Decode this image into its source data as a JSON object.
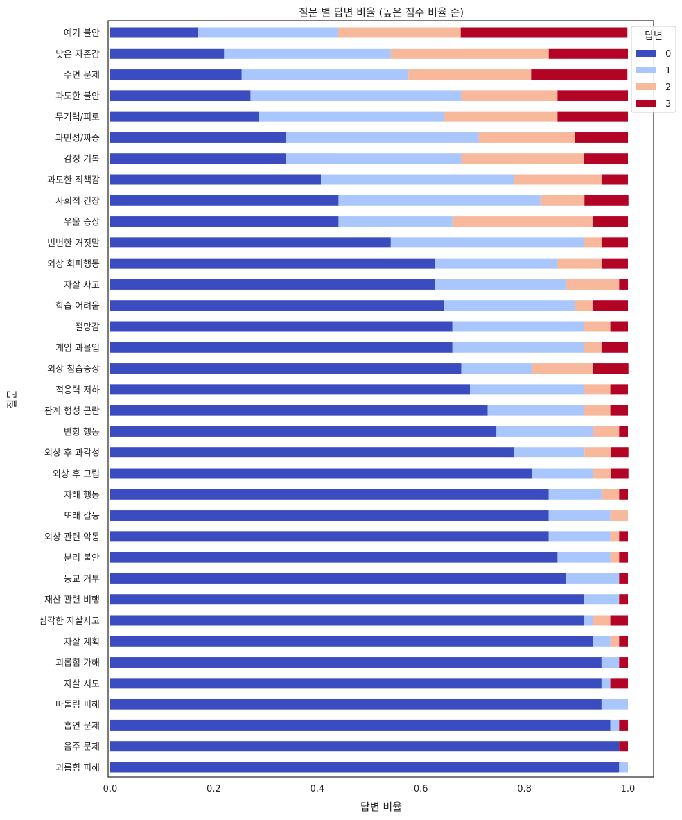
{
  "chart_data": {
    "type": "bar",
    "orientation": "horizontal",
    "stacked": true,
    "title": "질문 별 답변 비율 (높은 점수 비율 순)",
    "xlabel": "답변 비율",
    "ylabel": "질문",
    "xlim": [
      0,
      1.05
    ],
    "xticks": [
      "0.0",
      "0.2",
      "0.4",
      "0.6",
      "0.8",
      "1.0"
    ],
    "grid": false,
    "legend": {
      "title": "답변",
      "position": "top-right"
    },
    "categories": [
      "예기 불안",
      "낮은 자존감",
      "수면 문제",
      "과도한 불안",
      "무기력/피로",
      "과민성/짜증",
      "감정 기복",
      "과도한 죄책감",
      "사회적 긴장",
      "우울 증상",
      "빈번한 거짓말",
      "외상 회피행동",
      "자살 사고",
      "학습 어려움",
      "절망감",
      "게임 과몰입",
      "외상 침습증상",
      "적응력 저하",
      "관계 형성 곤란",
      "반항 행동",
      "외상 후 과각성",
      "외상 후 고립",
      "자해 행동",
      "또래 갈등",
      "외상 관련 악몽",
      "분리 불안",
      "등교 거부",
      "재산 관련 비행",
      "심각한 자살사고",
      "자살 계획",
      "괴롭힘 가해",
      "자살 시도",
      "따돌림 피해",
      "흡연 문제",
      "음주 문제",
      "괴롭힘 피해"
    ],
    "series": [
      {
        "name": "0",
        "color": "#3b4cc0",
        "values": [
          0.169,
          0.22,
          0.254,
          0.271,
          0.288,
          0.339,
          0.339,
          0.407,
          0.441,
          0.441,
          0.542,
          0.627,
          0.627,
          0.644,
          0.661,
          0.661,
          0.678,
          0.695,
          0.729,
          0.746,
          0.78,
          0.814,
          0.847,
          0.847,
          0.847,
          0.864,
          0.881,
          0.915,
          0.915,
          0.932,
          0.949,
          0.949,
          0.949,
          0.966,
          0.983,
          0.983
        ]
      },
      {
        "name": "1",
        "color": "#aac7fd",
        "values": [
          0.271,
          0.322,
          0.322,
          0.407,
          0.356,
          0.373,
          0.339,
          0.373,
          0.39,
          0.22,
          0.373,
          0.237,
          0.254,
          0.254,
          0.254,
          0.254,
          0.136,
          0.22,
          0.186,
          0.186,
          0.136,
          0.119,
          0.102,
          0.119,
          0.119,
          0.102,
          0.102,
          0.068,
          0.017,
          0.034,
          0.034,
          0.017,
          0.051,
          0.017,
          0.0,
          0.017
        ]
      },
      {
        "name": "2",
        "color": "#f7b89c",
        "values": [
          0.237,
          0.305,
          0.237,
          0.186,
          0.22,
          0.186,
          0.237,
          0.169,
          0.085,
          0.271,
          0.034,
          0.085,
          0.102,
          0.034,
          0.051,
          0.034,
          0.119,
          0.051,
          0.051,
          0.051,
          0.051,
          0.034,
          0.034,
          0.034,
          0.017,
          0.017,
          0.0,
          0.0,
          0.034,
          0.017,
          0.0,
          0.0,
          0.0,
          0.0,
          0.0,
          0.0
        ]
      },
      {
        "name": "3",
        "color": "#b40426",
        "values": [
          0.322,
          0.153,
          0.186,
          0.136,
          0.136,
          0.102,
          0.085,
          0.051,
          0.085,
          0.068,
          0.051,
          0.051,
          0.017,
          0.068,
          0.034,
          0.051,
          0.068,
          0.034,
          0.034,
          0.017,
          0.034,
          0.034,
          0.017,
          0.0,
          0.017,
          0.017,
          0.017,
          0.017,
          0.034,
          0.017,
          0.017,
          0.034,
          0.0,
          0.017,
          0.017,
          0.0
        ]
      }
    ]
  }
}
